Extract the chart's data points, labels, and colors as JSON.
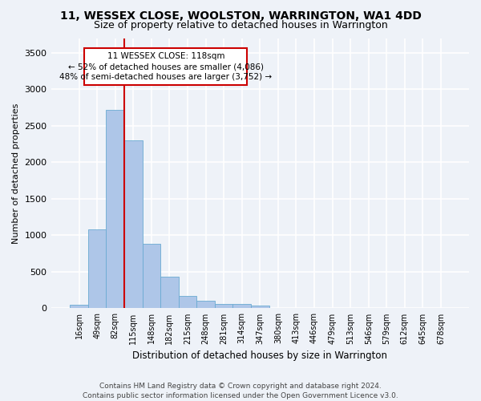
{
  "title1": "11, WESSEX CLOSE, WOOLSTON, WARRINGTON, WA1 4DD",
  "title2": "Size of property relative to detached houses in Warrington",
  "xlabel": "Distribution of detached houses by size in Warrington",
  "ylabel": "Number of detached properties",
  "categories": [
    "16sqm",
    "49sqm",
    "82sqm",
    "115sqm",
    "148sqm",
    "182sqm",
    "215sqm",
    "248sqm",
    "281sqm",
    "314sqm",
    "347sqm",
    "380sqm",
    "413sqm",
    "446sqm",
    "479sqm",
    "513sqm",
    "546sqm",
    "579sqm",
    "612sqm",
    "645sqm",
    "678sqm"
  ],
  "values": [
    50,
    1080,
    2720,
    2300,
    880,
    430,
    165,
    100,
    65,
    55,
    40,
    10,
    5,
    2,
    0,
    0,
    0,
    0,
    0,
    0,
    0
  ],
  "bar_color": "#aec6e8",
  "bar_edge_color": "#6aabd2",
  "vline_color": "#cc0000",
  "ylim": [
    0,
    3700
  ],
  "yticks": [
    0,
    500,
    1000,
    1500,
    2000,
    2500,
    3000,
    3500
  ],
  "annotation_line1": "11 WESSEX CLOSE: 118sqm",
  "annotation_line2": "← 52% of detached houses are smaller (4,086)",
  "annotation_line3": "48% of semi-detached houses are larger (3,752) →",
  "footer_line1": "Contains HM Land Registry data © Crown copyright and database right 2024.",
  "footer_line2": "Contains public sector information licensed under the Open Government Licence v3.0.",
  "background_color": "#eef2f8",
  "plot_bg_color": "#eef2f8",
  "grid_color": "#ffffff",
  "title1_fontsize": 10,
  "title2_fontsize": 9,
  "axis_fontsize": 8,
  "tick_fontsize": 7,
  "footer_fontsize": 6.5
}
